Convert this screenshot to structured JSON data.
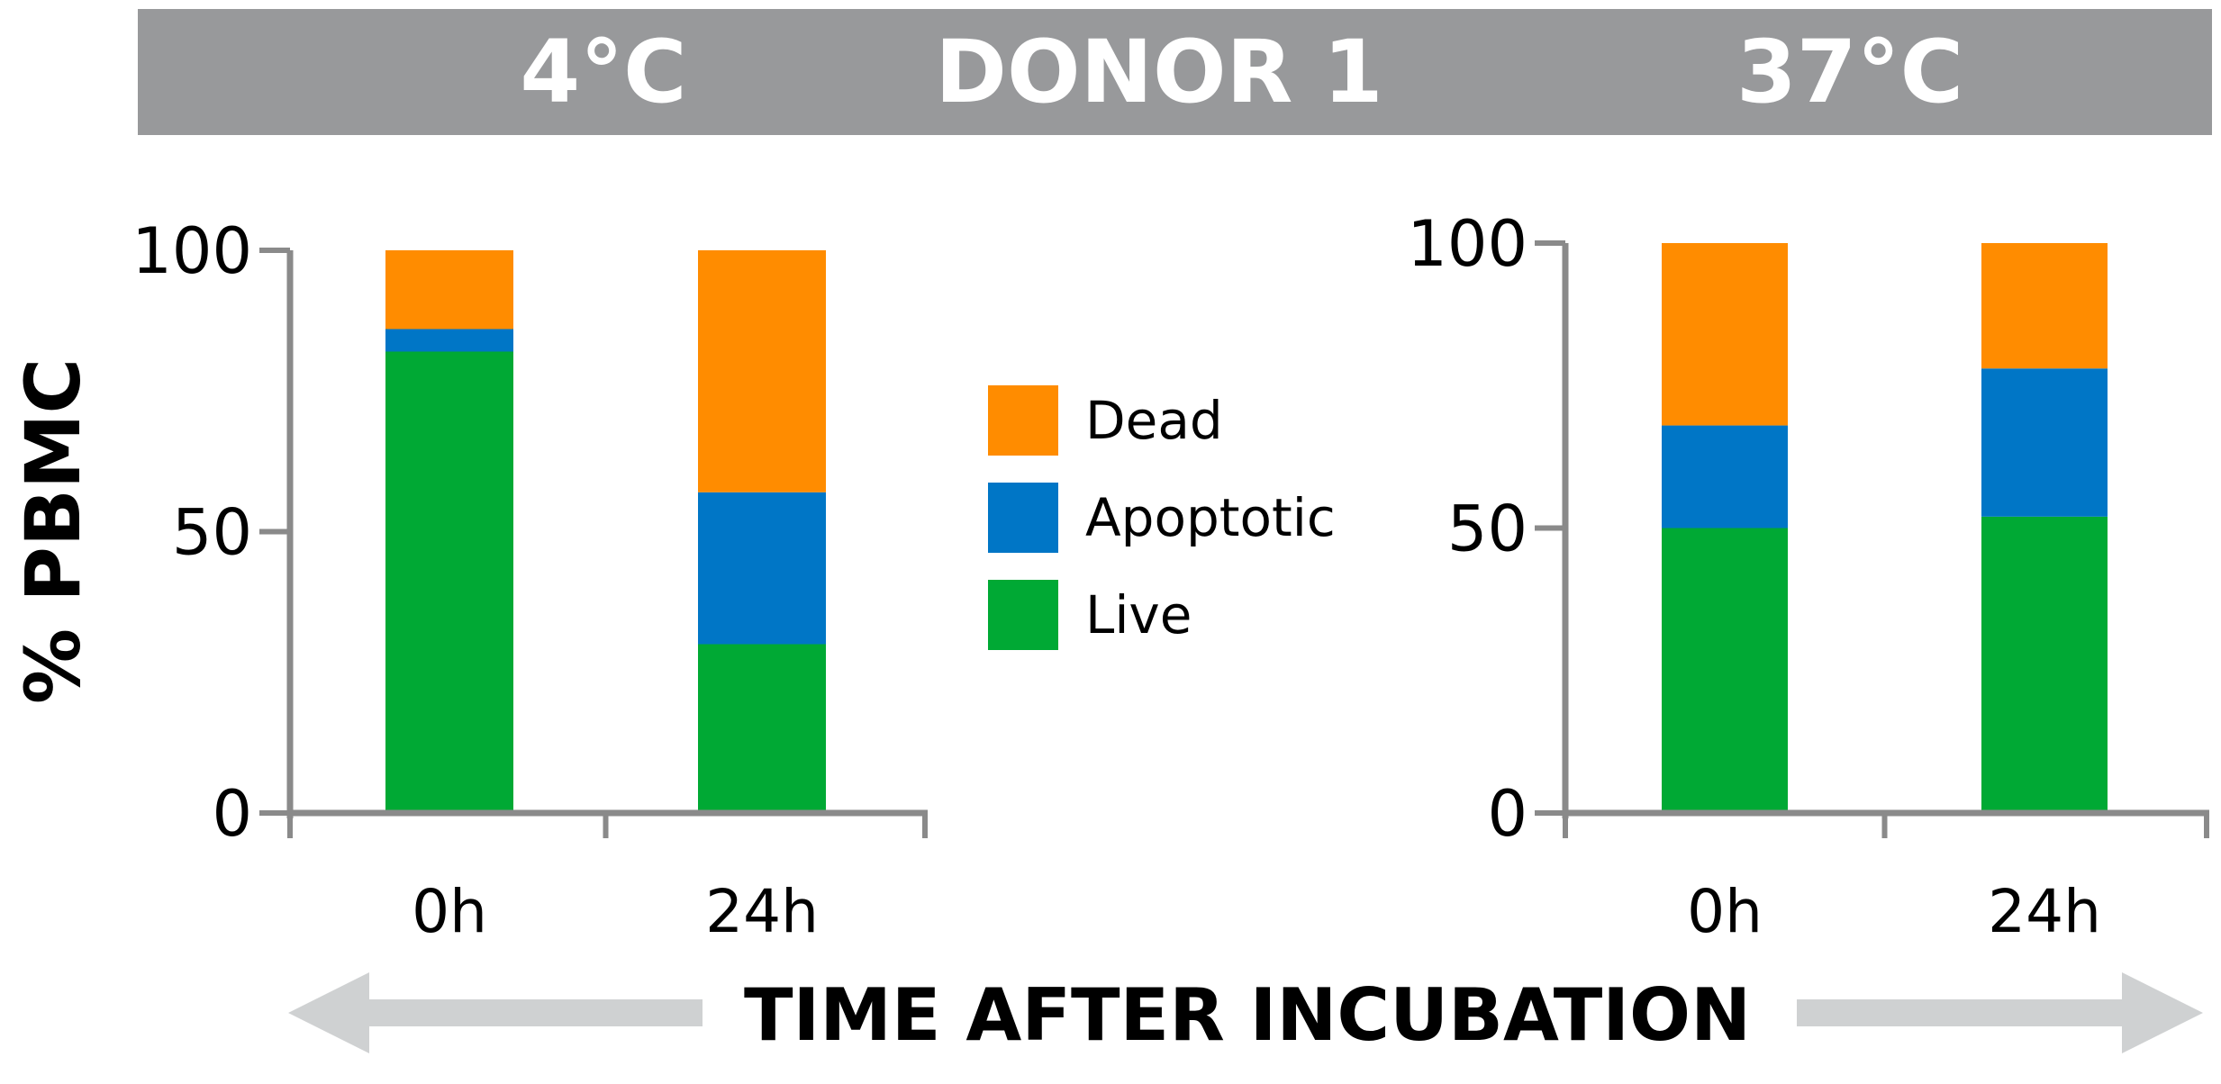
{
  "header": {
    "left_label": "4°C",
    "center_label": "DONOR 1",
    "right_label": "37°C",
    "color": "#98999b"
  },
  "ylabel": "% PBMC",
  "xlabel": "TIME AFTER INCUBATION",
  "arrow_color": "#cfd1d2",
  "legend": {
    "items": [
      {
        "label": "Dead",
        "color": "#ff8c00"
      },
      {
        "label": "Apoptotic",
        "color": "#0076c6"
      },
      {
        "label": "Live",
        "color": "#00a934"
      }
    ]
  },
  "chart_data": [
    {
      "type": "bar",
      "stacked": true,
      "title": "4°C",
      "categories": [
        "0h",
        "24h"
      ],
      "yticks": [
        "0",
        "50",
        "100"
      ],
      "ylim": [
        0,
        100
      ],
      "series": [
        {
          "name": "Live",
          "color": "#00a934",
          "values": [
            82,
            30
          ]
        },
        {
          "name": "Apoptotic",
          "color": "#0076c6",
          "values": [
            4,
            27
          ]
        },
        {
          "name": "Dead",
          "color": "#ff8c00",
          "values": [
            14,
            43
          ]
        }
      ]
    },
    {
      "type": "bar",
      "stacked": true,
      "title": "37°C",
      "categories": [
        "0h",
        "24h"
      ],
      "yticks": [
        "0",
        "50",
        "100"
      ],
      "ylim": [
        0,
        100
      ],
      "series": [
        {
          "name": "Live",
          "color": "#00a934",
          "values": [
            50,
            52
          ]
        },
        {
          "name": "Apoptotic",
          "color": "#0076c6",
          "values": [
            18,
            26
          ]
        },
        {
          "name": "Dead",
          "color": "#ff8c00",
          "values": [
            32,
            22
          ]
        }
      ]
    }
  ]
}
